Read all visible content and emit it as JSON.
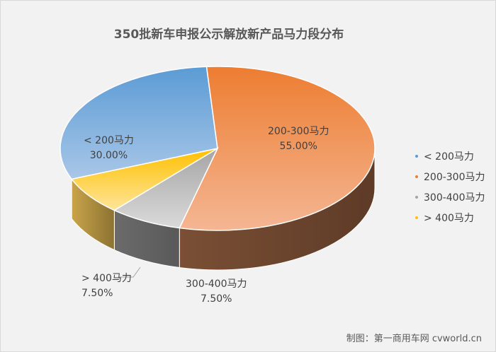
{
  "chart_data": {
    "type": "pie",
    "title": "350批新车申报公示解放新产品马力段分布",
    "categories": [
      "< 200马力",
      "200-300马力",
      "300-400马力",
      "> 400马力"
    ],
    "values": [
      30.0,
      55.0,
      7.5,
      7.5
    ],
    "value_labels": [
      "30.00%",
      "55.00%",
      "7.50%",
      "7.50%"
    ],
    "colors": [
      "#5b9bd5",
      "#ed7d31",
      "#a5a5a5",
      "#ffc000"
    ],
    "legend_position": "right"
  },
  "credit": "制图：第一商用车网 cvworld.cn"
}
